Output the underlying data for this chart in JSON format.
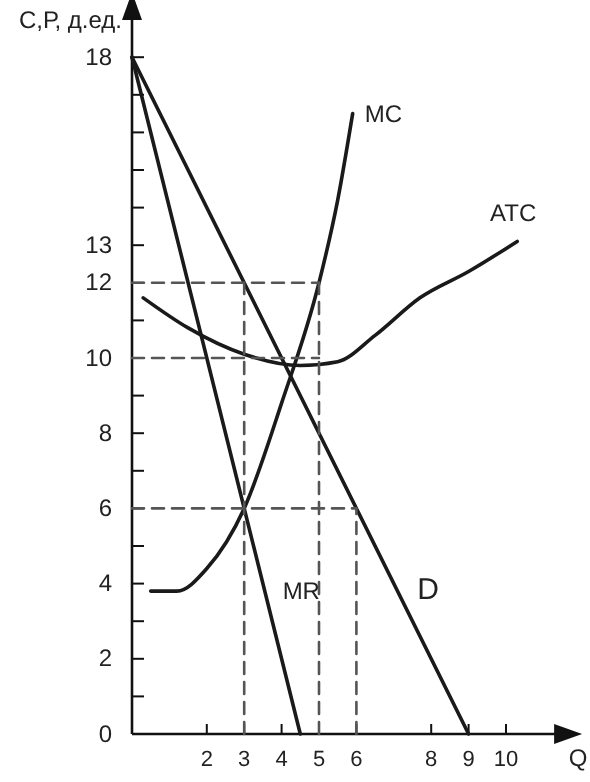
{
  "chart_data": {
    "type": "line",
    "xlabel": "Q",
    "ylabel": "С,Р, д.ед.",
    "xlim": [
      0,
      11.5
    ],
    "ylim": [
      0,
      19.2
    ],
    "xticks": [
      2,
      3,
      4,
      5,
      6,
      8,
      9,
      10
    ],
    "yticks": [
      0,
      {
        "value": 1,
        "label": null
      },
      2,
      {
        "value": 3,
        "label": null
      },
      4,
      {
        "value": 5,
        "label": null
      },
      6,
      {
        "value": 7,
        "label": null
      },
      8,
      {
        "value": 9,
        "label": null
      },
      10,
      {
        "value": 11,
        "label": null
      },
      12,
      13,
      {
        "value": 14,
        "label": null
      },
      {
        "value": 15,
        "label": null
      },
      {
        "value": 16,
        "label": null
      },
      {
        "value": 17,
        "label": null
      },
      18
    ],
    "grid": false,
    "marker": "none",
    "series": [
      {
        "name": "D",
        "color": "#1a1a1a",
        "x": [
          0,
          9
        ],
        "values": [
          18,
          0
        ]
      },
      {
        "name": "MR",
        "color": "#1a1a1a",
        "x": [
          0,
          4.5
        ],
        "values": [
          18,
          0
        ]
      },
      {
        "name": "MC",
        "color": "#1a1a1a",
        "x": [
          0.5,
          1.2,
          2,
          3,
          4,
          5,
          5.5,
          5.9
        ],
        "values": [
          3.8,
          3.8,
          4.4,
          6,
          8.8,
          12,
          14.2,
          16.5
        ]
      },
      {
        "name": "ATC",
        "color": "#1a1a1a",
        "x": [
          0.3,
          1.5,
          3,
          4.5,
          5.5,
          6.5,
          7.7,
          9,
          10.3
        ],
        "values": [
          11.6,
          10.8,
          10.1,
          9.8,
          9.9,
          10.6,
          11.6,
          12.3,
          13.1
        ]
      },
      {
        "color": "#555555",
        "line_style": "dashed",
        "x": [
          0,
          5
        ],
        "values": [
          12,
          12
        ]
      },
      {
        "color": "#555555",
        "line_style": "dashed",
        "x": [
          0,
          5
        ],
        "values": [
          10,
          10
        ]
      },
      {
        "color": "#555555",
        "line_style": "dashed",
        "x": [
          0,
          6
        ],
        "values": [
          6,
          6
        ]
      },
      {
        "color": "#555555",
        "line_style": "dashed",
        "x": [
          3,
          3
        ],
        "values": [
          0,
          12
        ]
      },
      {
        "color": "#555555",
        "line_style": "dashed",
        "x": [
          5,
          5
        ],
        "values": [
          0,
          12
        ]
      },
      {
        "color": "#555555",
        "line_style": "dashed",
        "x": [
          6,
          6
        ],
        "values": [
          0,
          6
        ]
      }
    ]
  }
}
